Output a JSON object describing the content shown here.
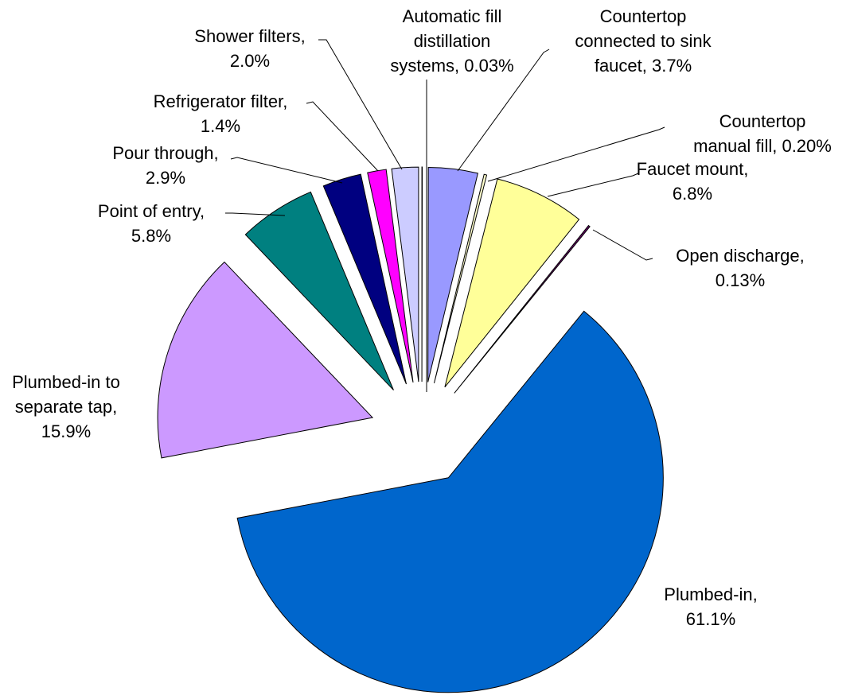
{
  "chart_data": {
    "type": "pie",
    "categories": [
      "Automatic fill distillation systems",
      "Countertop connected to sink faucet",
      "Countertop manual fill",
      "Faucet mount",
      "Open discharge",
      "Plumbed-in",
      "Plumbed-in to separate tap",
      "Point of entry",
      "Pour through",
      "Refrigerator filter",
      "Shower filters"
    ],
    "values": [
      0.03,
      3.7,
      0.2,
      6.8,
      0.13,
      61.1,
      15.9,
      5.8,
      2.9,
      1.4,
      2.0
    ],
    "value_labels": [
      "0.03%",
      "3.7%",
      "0.20%",
      "6.8%",
      "0.13%",
      "61.1%",
      "15.9%",
      "5.8%",
      "2.9%",
      "1.4%",
      "2.0%"
    ],
    "separator": ", ",
    "colors": [
      "#ffffff",
      "#9999ff",
      "#ffffcc",
      "#ffff99",
      "#660066",
      "#0066cc",
      "#cc99ff",
      "#008080",
      "#000080",
      "#ff00ff",
      "#ccccff"
    ]
  }
}
